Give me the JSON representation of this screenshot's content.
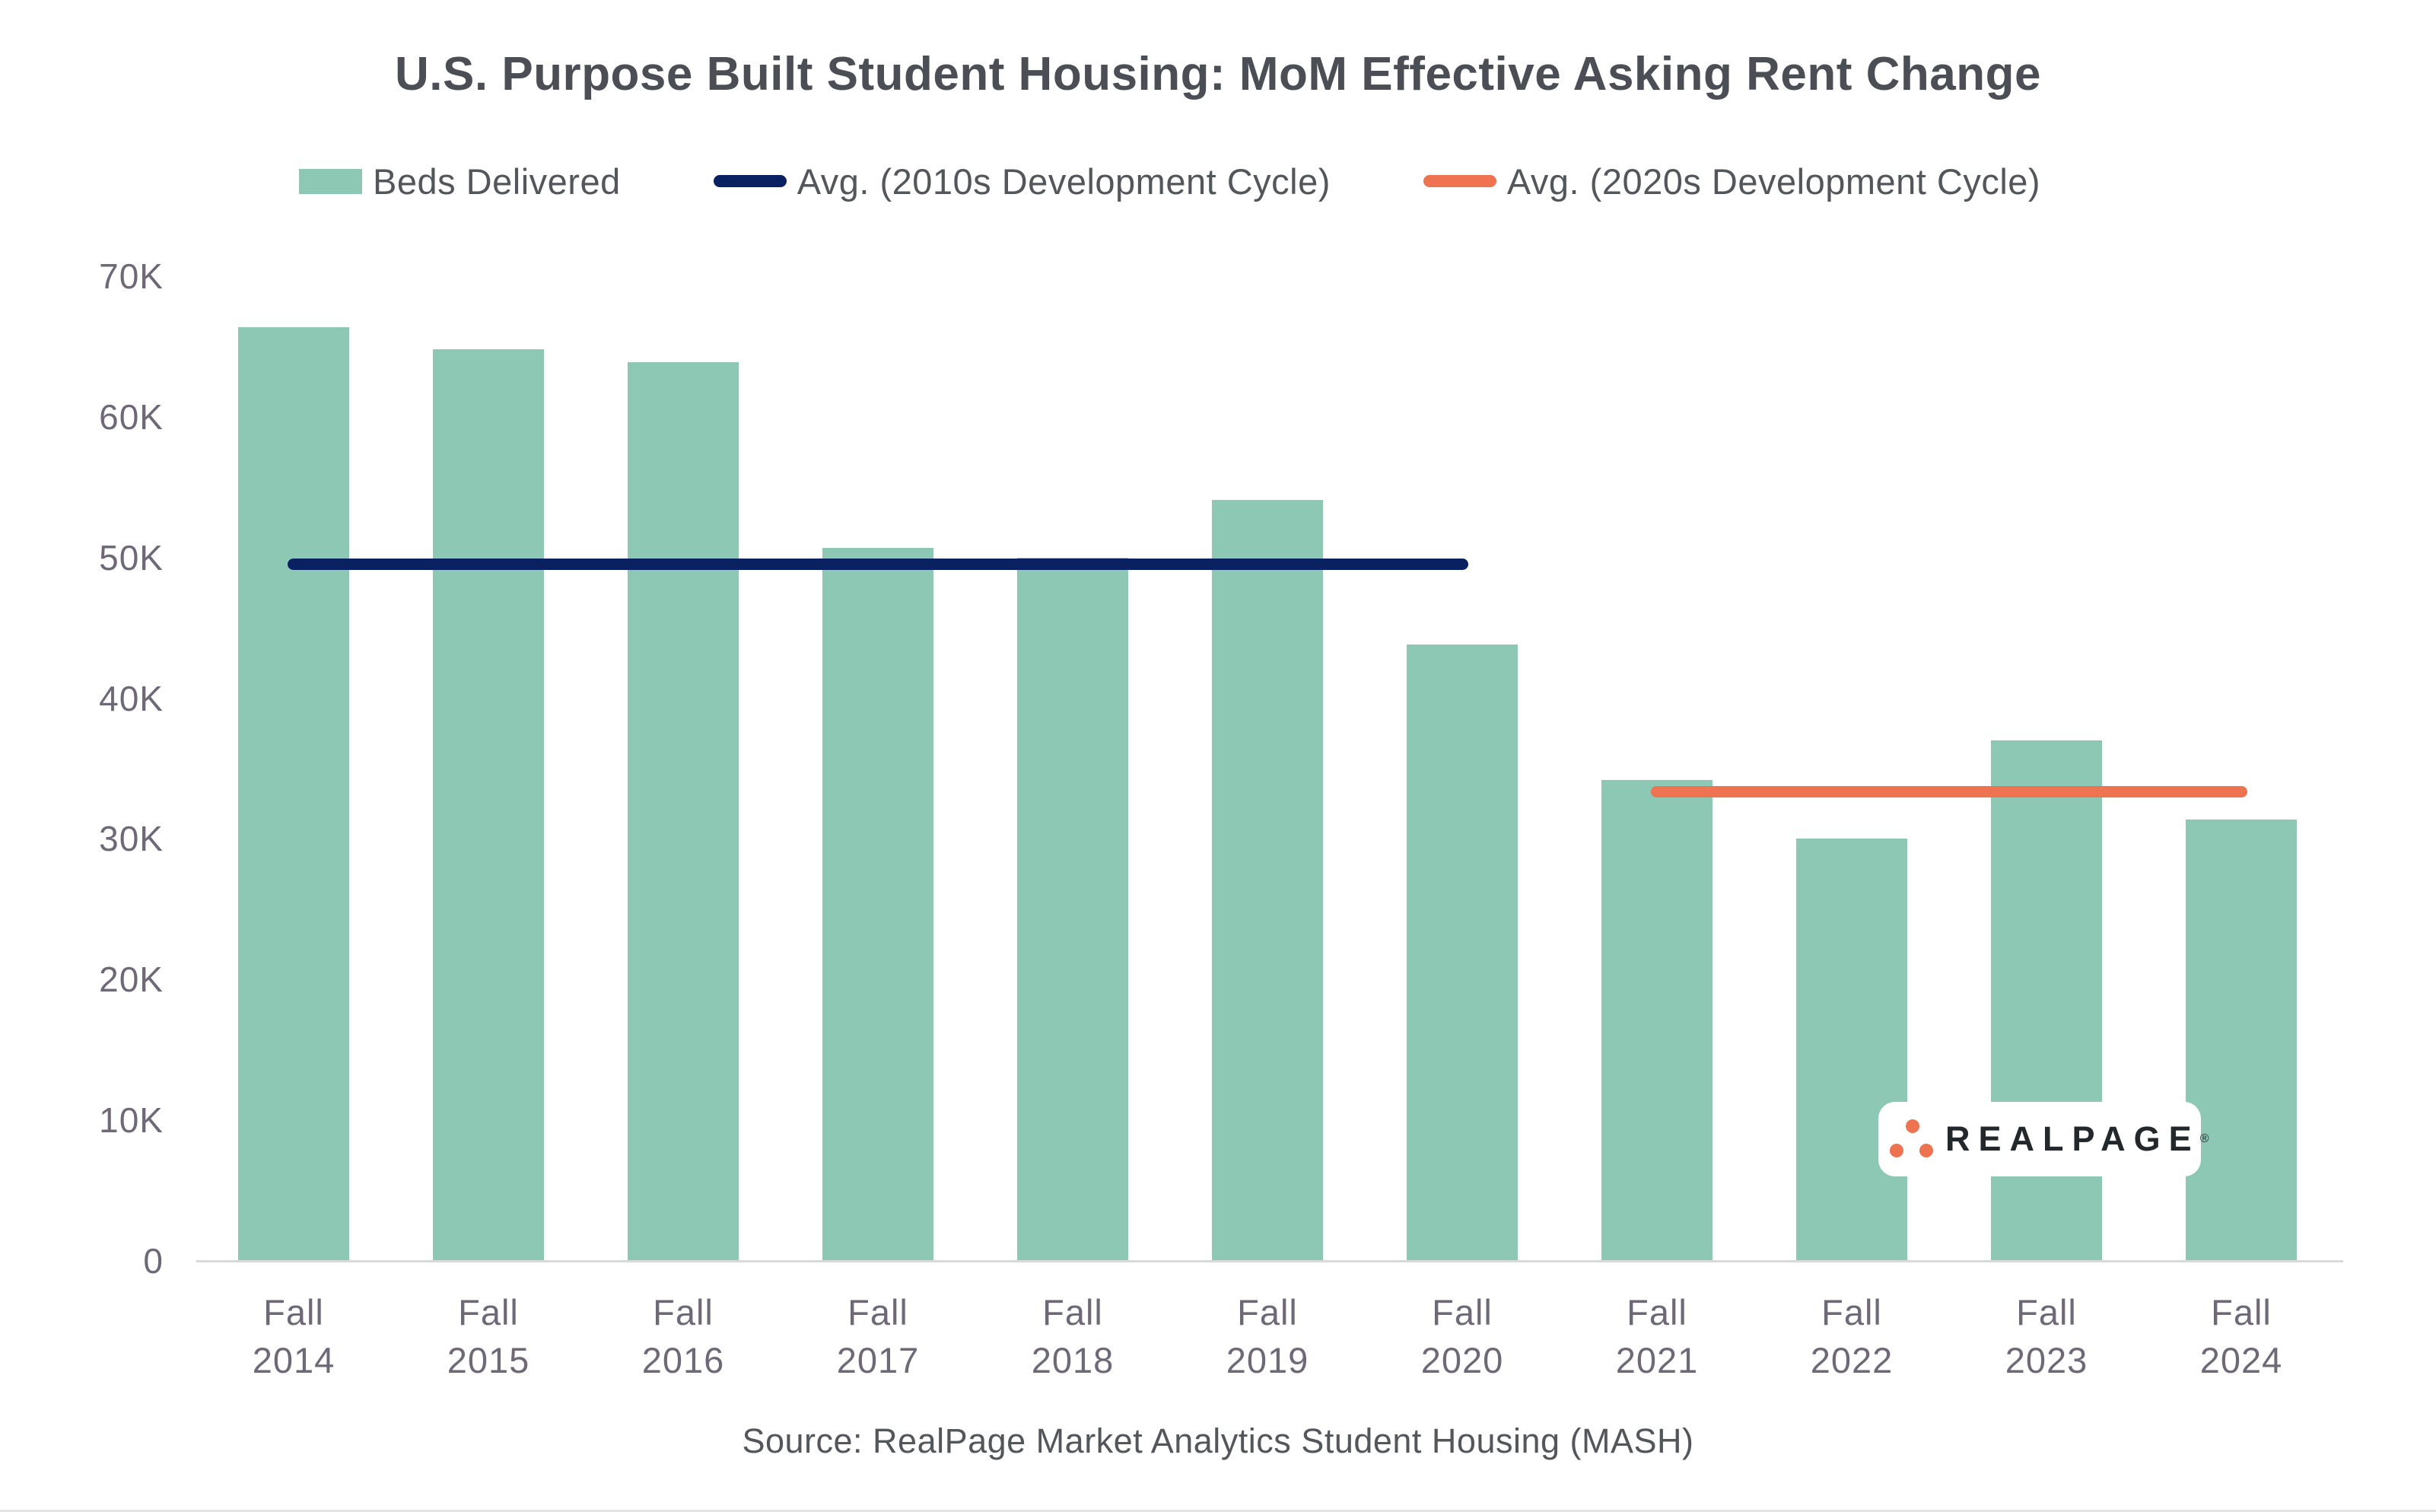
{
  "title": "U.S. Purpose Built Student Housing: MoM Effective Asking Rent Change",
  "source": "Source: RealPage Market Analytics Student Housing (MASH)",
  "logo": {
    "text": "REALPAGE",
    "mark": "®"
  },
  "colors": {
    "bar": "#8DC8B4",
    "avg_2010s": "#0A2161",
    "avg_2020s": "#EE7350",
    "title_text": "#4B4F55",
    "axis_text": "#6F6877",
    "legend_text": "#53565A",
    "axis_line": "#D9D9D9"
  },
  "legend": {
    "items": [
      {
        "label": "Beds Delivered",
        "swatch": "green-box"
      },
      {
        "label": "Avg. (2010s Development Cycle)",
        "swatch": "navy-line"
      },
      {
        "label": "Avg. (2020s Development Cycle)",
        "swatch": "orange-line"
      }
    ]
  },
  "chart_data": {
    "type": "bar",
    "title": "U.S. Purpose Built Student Housing: MoM Effective Asking Rent Change",
    "xlabel": "",
    "ylabel": "",
    "unit": "beds",
    "categories": [
      "Fall 2014",
      "Fall 2015",
      "Fall 2016",
      "Fall 2017",
      "Fall 2018",
      "Fall 2019",
      "Fall 2020",
      "Fall 2021",
      "Fall 2022",
      "Fall 2023",
      "Fall 2024"
    ],
    "series": [
      {
        "name": "Beds Delivered",
        "type": "bar",
        "color": "#8DC8B4",
        "values": [
          66400,
          64800,
          63900,
          50700,
          50000,
          54100,
          43800,
          34200,
          30000,
          37000,
          31400
        ]
      }
    ],
    "reference_lines": [
      {
        "name": "Avg. (2010s Development Cycle)",
        "value": 49500,
        "color": "#0A2161",
        "span": [
          "Fall 2014",
          "Fall 2020"
        ]
      },
      {
        "name": "Avg. (2020s Development Cycle)",
        "value": 33300,
        "color": "#EE7350",
        "span": [
          "Fall 2021",
          "Fall 2024"
        ]
      }
    ],
    "ylim": [
      0,
      70000
    ],
    "yticks": [
      {
        "value": 0,
        "label": "0"
      },
      {
        "value": 10000,
        "label": "10K"
      },
      {
        "value": 20000,
        "label": "20K"
      },
      {
        "value": 30000,
        "label": "30K"
      },
      {
        "value": 40000,
        "label": "40K"
      },
      {
        "value": 50000,
        "label": "50K"
      },
      {
        "value": 60000,
        "label": "60K"
      },
      {
        "value": 70000,
        "label": "70K"
      }
    ],
    "grid": false,
    "legend_position": "top"
  }
}
